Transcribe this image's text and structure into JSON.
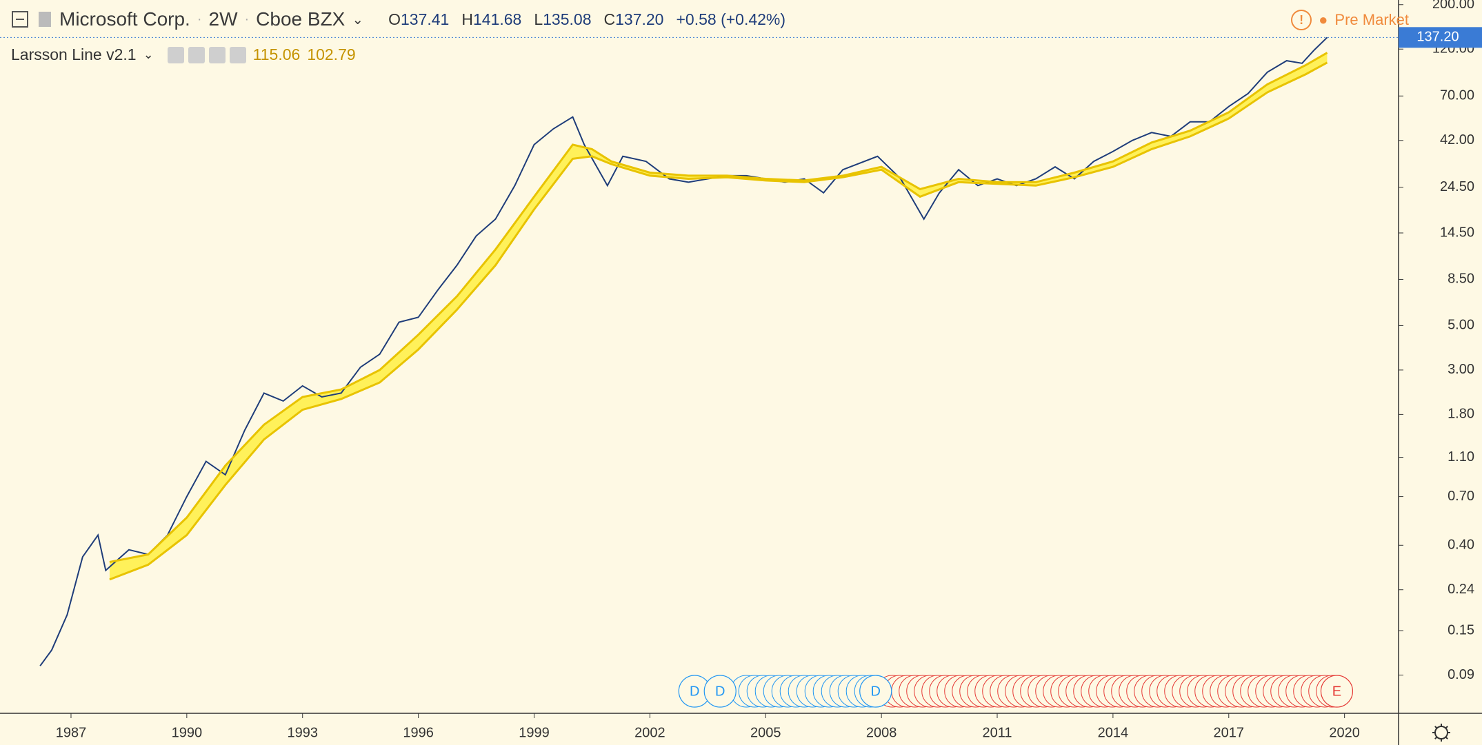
{
  "header": {
    "symbol": "Microsoft Corp.",
    "interval": "2W",
    "exchange": "Cboe BZX",
    "open_key": "O",
    "open": 137.41,
    "high_key": "H",
    "high": 141.68,
    "low_key": "L",
    "low": 135.08,
    "close_key": "C",
    "close": {
      "value": 137.2,
      "label": "137.20"
    },
    "change": "+0.58 (+0.42%)",
    "session": "Pre Market"
  },
  "indicator": {
    "name": "Larsson Line v2.1",
    "upper": 115.06,
    "lower": 102.79
  },
  "chart_data": {
    "type": "line",
    "log_scale": true,
    "background": "#fef9e4",
    "xlim": [
      1985.16,
      2021.4
    ],
    "xticks": [
      1987,
      1990,
      1993,
      1996,
      1999,
      2002,
      2005,
      2008,
      2011,
      2014,
      2017,
      2020
    ],
    "ylim": [
      0.058,
      211
    ],
    "yticks": [
      0.09,
      0.15,
      0.24,
      {
        "value": 0.4,
        "label": "0.40"
      },
      {
        "value": 0.7,
        "label": "0.70"
      },
      {
        "value": 1.1,
        "label": "1.10"
      },
      {
        "value": 1.8,
        "label": "1.80"
      },
      {
        "value": 3,
        "label": "3.00"
      },
      {
        "value": 5,
        "label": "5.00"
      },
      {
        "value": 8.5,
        "label": "8.50"
      },
      {
        "value": 14.5,
        "label": "14.50"
      },
      {
        "value": 24.5,
        "label": "24.50"
      },
      {
        "value": 42,
        "label": "42.00"
      },
      {
        "value": 70,
        "label": "70.00"
      },
      {
        "value": 120,
        "label": "120.00"
      },
      {
        "value": 200,
        "label": "200.00"
      }
    ],
    "last_price": {
      "value": 137.2,
      "label": "137.20"
    },
    "series": [
      {
        "name": "Price",
        "color": "#1f3d7a",
        "x": [
          1986.2,
          1986.5,
          1986.9,
          1987.3,
          1987.7,
          1987.9,
          1988.5,
          1989.0,
          1989.5,
          1990.0,
          1990.5,
          1991.0,
          1991.5,
          1992.0,
          1992.5,
          1993.0,
          1993.5,
          1994.0,
          1994.5,
          1995.0,
          1995.5,
          1996.0,
          1996.5,
          1997.0,
          1997.5,
          1998.0,
          1998.5,
          1999.0,
          1999.5,
          2000.0,
          2000.3,
          2000.9,
          2001.3,
          2001.9,
          2002.5,
          2003.0,
          2003.5,
          2004.0,
          2004.5,
          2005.0,
          2005.5,
          2006.0,
          2006.5,
          2007.0,
          2007.9,
          2008.5,
          2009.1,
          2009.5,
          2010.0,
          2010.5,
          2011.0,
          2011.5,
          2012.0,
          2012.5,
          2013.0,
          2013.5,
          2014.0,
          2014.5,
          2015.0,
          2015.5,
          2016.0,
          2016.5,
          2017.0,
          2017.5,
          2018.0,
          2018.5,
          2018.9,
          2019.2,
          2019.55
        ],
        "values": [
          0.1,
          0.12,
          0.18,
          0.35,
          0.45,
          0.3,
          0.38,
          0.36,
          0.45,
          0.7,
          1.05,
          0.9,
          1.5,
          2.3,
          2.1,
          2.5,
          2.2,
          2.3,
          3.1,
          3.6,
          5.2,
          5.5,
          7.5,
          10,
          14,
          17,
          25,
          40,
          48,
          55,
          40,
          25,
          35,
          33,
          27,
          26,
          27,
          28,
          28,
          27,
          26,
          27,
          23,
          30,
          35,
          27,
          17,
          23,
          30,
          25,
          27,
          25,
          27,
          31,
          27,
          33,
          37,
          42,
          46,
          44,
          52,
          52,
          62,
          72,
          92,
          105,
          102,
          118,
          137.2
        ]
      },
      {
        "name": "Larsson upper",
        "color": "#e8c300",
        "x": [
          1988.0,
          1989.0,
          1990.0,
          1991.0,
          1992.0,
          1993.0,
          1994.0,
          1995.0,
          1996.0,
          1997.0,
          1998.0,
          1999.0,
          2000.0,
          2000.5,
          2001.0,
          2002.0,
          2003.0,
          2004.0,
          2005.0,
          2006.0,
          2007.0,
          2008.0,
          2009.0,
          2010.0,
          2011.0,
          2012.0,
          2013.0,
          2014.0,
          2015.0,
          2016.0,
          2017.0,
          2018.0,
          2019.0,
          2019.55
        ],
        "values": [
          0.33,
          0.36,
          0.55,
          1.0,
          1.6,
          2.2,
          2.4,
          3.0,
          4.5,
          7,
          12,
          22,
          40,
          38,
          33,
          29,
          28,
          28,
          27,
          26.5,
          28,
          31,
          24,
          27,
          26,
          26,
          29,
          33,
          41,
          47,
          58,
          80,
          100,
          115.06
        ]
      },
      {
        "name": "Larsson lower",
        "color": "#e8c300",
        "x": [
          1988.0,
          1989.0,
          1990.0,
          1991.0,
          1992.0,
          1993.0,
          1994.0,
          1995.0,
          1996.0,
          1997.0,
          1998.0,
          1999.0,
          2000.0,
          2000.5,
          2001.0,
          2002.0,
          2003.0,
          2004.0,
          2005.0,
          2006.0,
          2007.0,
          2008.0,
          2009.0,
          2010.0,
          2011.0,
          2012.0,
          2013.0,
          2014.0,
          2015.0,
          2016.0,
          2017.0,
          2018.0,
          2019.0,
          2019.55
        ],
        "values": [
          0.27,
          0.32,
          0.45,
          0.8,
          1.35,
          1.9,
          2.15,
          2.6,
          3.8,
          6,
          10,
          19,
          34,
          35,
          32,
          28,
          27,
          27.5,
          26.5,
          26,
          27.5,
          30,
          22,
          26,
          25.5,
          25,
          27.5,
          31,
          38,
          44,
          54,
          73,
          90,
          102.79
        ]
      }
    ],
    "events": [
      {
        "x": 2003.16,
        "label": "D",
        "color": "#2196f3"
      },
      {
        "x": 2003.82,
        "label": "D",
        "color": "#2196f3"
      },
      {
        "x": 2007.85,
        "label": "D",
        "color": "#2196f3"
      },
      {
        "x": 2019.8,
        "label": "E",
        "color": "#e53935"
      }
    ]
  }
}
